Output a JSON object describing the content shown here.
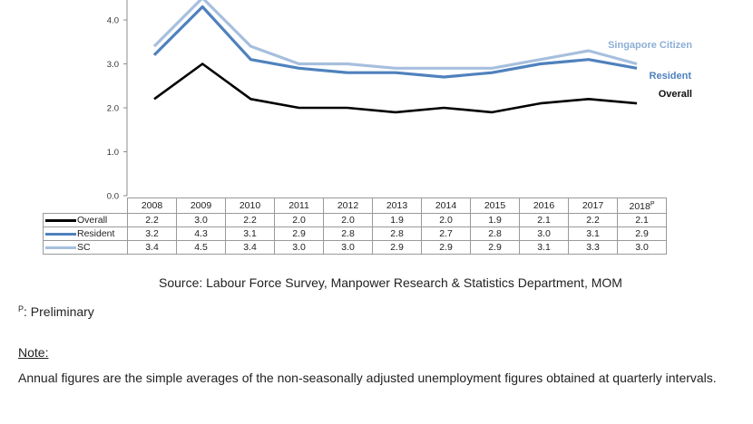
{
  "chart_data": {
    "type": "line",
    "categories": [
      "2008",
      "2009",
      "2010",
      "2011",
      "2012",
      "2013",
      "2014",
      "2015",
      "2016",
      "2017",
      "2018"
    ],
    "category_marks": [
      "",
      "",
      "",
      "",
      "",
      "",
      "",
      "",
      "",
      "",
      "P"
    ],
    "series": [
      {
        "name": "Overall",
        "table_label": "Overall",
        "line_label": "Overall",
        "color": "#000000",
        "values": [
          2.2,
          3.0,
          2.2,
          2.0,
          2.0,
          1.9,
          2.0,
          1.9,
          2.1,
          2.2,
          2.1
        ],
        "labels": [
          "2.2",
          "3.0",
          "2.2",
          "2.0",
          "2.0",
          "1.9",
          "2.0",
          "1.9",
          "2.1",
          "2.2",
          "2.1"
        ]
      },
      {
        "name": "Resident",
        "table_label": "Resident",
        "line_label": "Resident",
        "color": "#4f81bd",
        "values": [
          3.2,
          4.3,
          3.1,
          2.9,
          2.8,
          2.8,
          2.7,
          2.8,
          3.0,
          3.1,
          2.9
        ],
        "labels": [
          "3.2",
          "4.3",
          "3.1",
          "2.9",
          "2.8",
          "2.8",
          "2.7",
          "2.8",
          "3.0",
          "3.1",
          "2.9"
        ]
      },
      {
        "name": "SC",
        "table_label": "SC",
        "line_label": "Singapore Citizen",
        "color": "#a7bfde",
        "values": [
          3.4,
          4.5,
          3.4,
          3.0,
          3.0,
          2.9,
          2.9,
          2.9,
          3.1,
          3.3,
          3.0
        ],
        "labels": [
          "3.4",
          "4.5",
          "3.4",
          "3.0",
          "3.0",
          "2.9",
          "2.9",
          "2.9",
          "3.1",
          "3.3",
          "3.0"
        ]
      }
    ],
    "yticks": [
      "0.0",
      "1.0",
      "2.0",
      "3.0",
      "4.0"
    ],
    "ylim": [
      0,
      4.5
    ],
    "grid": false,
    "title": "",
    "xlabel": "",
    "ylabel": ""
  },
  "source_text": "Source: Labour Force Survey, Manpower Research & Statistics Department, MOM",
  "footnote": {
    "mark": "P",
    "text": ": Preliminary"
  },
  "note": {
    "heading": "Note:",
    "body": "Annual figures are the simple averages of the non-seasonally adjusted unemployment figures obtained at quarterly intervals."
  }
}
